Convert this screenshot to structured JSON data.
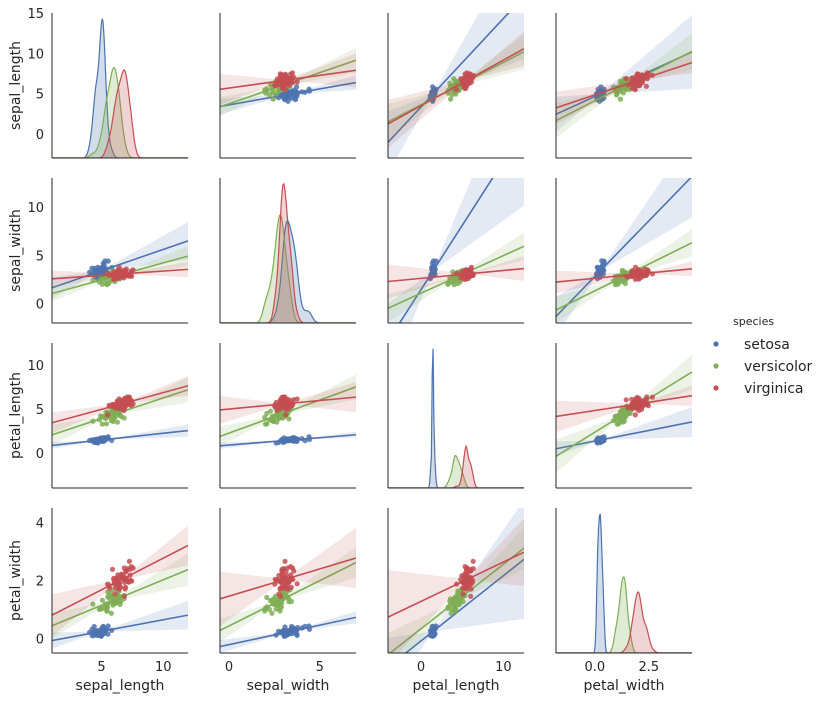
{
  "chart_data": {
    "type": "scatter",
    "title": "",
    "variables": [
      "sepal_length",
      "sepal_width",
      "petal_length",
      "petal_width"
    ],
    "axes": {
      "sepal_length": {
        "range": [
          -3,
          15
        ],
        "ticks": [
          0,
          5,
          10,
          15
        ],
        "x_range": [
          1,
          12
        ],
        "x_ticks": [
          5,
          10
        ]
      },
      "sepal_width": {
        "range": [
          -2,
          13
        ],
        "ticks": [
          0,
          5,
          10
        ],
        "x_range": [
          -0.5,
          7
        ],
        "x_ticks": [
          0,
          5
        ]
      },
      "petal_length": {
        "range": [
          -4,
          12.5
        ],
        "ticks": [
          0,
          5,
          10
        ],
        "x_range": [
          -4,
          12.5
        ],
        "x_ticks": [
          0,
          10
        ]
      },
      "petal_width": {
        "range": [
          -0.5,
          4.5
        ],
        "ticks": [
          0,
          2,
          4
        ],
        "x_range": [
          -1.8,
          4.5
        ],
        "x_ticks": [
          0.0,
          2.5
        ]
      }
    },
    "legend": {
      "title": "species",
      "position": "right",
      "entries": [
        "setosa",
        "versicolor",
        "virginica"
      ]
    },
    "series": [
      {
        "name": "setosa",
        "color": "#4c72b0",
        "means": [
          5.0,
          3.4,
          1.5,
          0.25
        ],
        "sds": [
          0.35,
          0.38,
          0.17,
          0.1
        ]
      },
      {
        "name": "versicolor",
        "color": "#7fae55",
        "means": [
          5.9,
          2.8,
          4.3,
          1.3
        ],
        "sds": [
          0.5,
          0.31,
          0.47,
          0.2
        ]
      },
      {
        "name": "virginica",
        "color": "#c44e52",
        "means": [
          6.6,
          3.0,
          5.55,
          2.0
        ],
        "sds": [
          0.63,
          0.32,
          0.55,
          0.27
        ]
      }
    ]
  }
}
